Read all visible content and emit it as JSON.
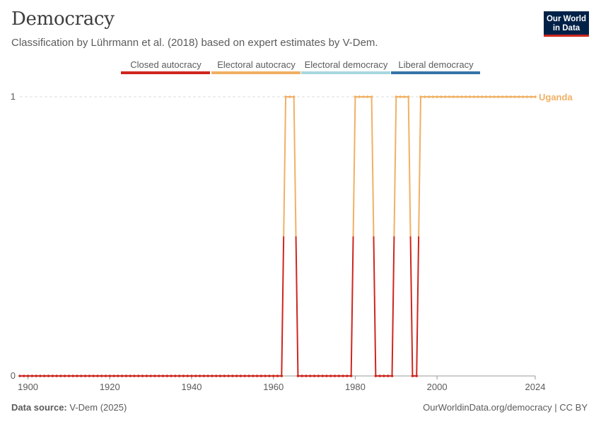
{
  "header": {
    "title": "Democracy",
    "subtitle": "Classification by Lührmann et al. (2018) based on expert estimates by V-Dem."
  },
  "logo": {
    "line1": "Our World",
    "line2": "in Data"
  },
  "footer": {
    "source_label": "Data source:",
    "source_value": "V-Dem (2025)",
    "url_license": "OurWorldinData.org/democracy | CC BY"
  },
  "colors": {
    "closed_autocracy": "#ce261e",
    "electoral_autocracy": "#f1b064",
    "electoral_democracy": "#a7d8de",
    "liberal_democracy": "#3474a8",
    "gridline": "#dddddd",
    "axis": "#999999"
  },
  "chart_data": {
    "type": "line",
    "title": "Democracy",
    "xlabel": "",
    "ylabel": "",
    "xlim": [
      1898,
      2024
    ],
    "ylim": [
      0,
      1
    ],
    "x_ticks": [
      "1900",
      "1920",
      "1940",
      "1960",
      "1980",
      "2000",
      "2024"
    ],
    "y_ticks": [
      "0",
      "1"
    ],
    "legend": {
      "placement": "top",
      "entries": [
        "Closed autocracy",
        "Electoral autocracy",
        "Electoral democracy",
        "Liberal democracy"
      ]
    },
    "series": [
      {
        "name": "Uganda",
        "label": "Uganda",
        "x_start": 1898,
        "x_end": 2024,
        "values": [
          0,
          0,
          0,
          0,
          0,
          0,
          0,
          0,
          0,
          0,
          0,
          0,
          0,
          0,
          0,
          0,
          0,
          0,
          0,
          0,
          0,
          0,
          0,
          0,
          0,
          0,
          0,
          0,
          0,
          0,
          0,
          0,
          0,
          0,
          0,
          0,
          0,
          0,
          0,
          0,
          0,
          0,
          0,
          0,
          0,
          0,
          0,
          0,
          0,
          0,
          0,
          0,
          0,
          0,
          0,
          0,
          0,
          0,
          0,
          0,
          0,
          0,
          0,
          0,
          0,
          1,
          1,
          1,
          0,
          0,
          0,
          0,
          0,
          0,
          0,
          0,
          0,
          0,
          0,
          0,
          0,
          0,
          1,
          1,
          1,
          1,
          1,
          0,
          0,
          0,
          0,
          0,
          1,
          1,
          1,
          1,
          0,
          0,
          1,
          1,
          1,
          1,
          1,
          1,
          1,
          1,
          1,
          1,
          1,
          1,
          1,
          1,
          1,
          1,
          1,
          1,
          1,
          1,
          1,
          1,
          1,
          1,
          1,
          1,
          1,
          1,
          1
        ]
      }
    ]
  }
}
